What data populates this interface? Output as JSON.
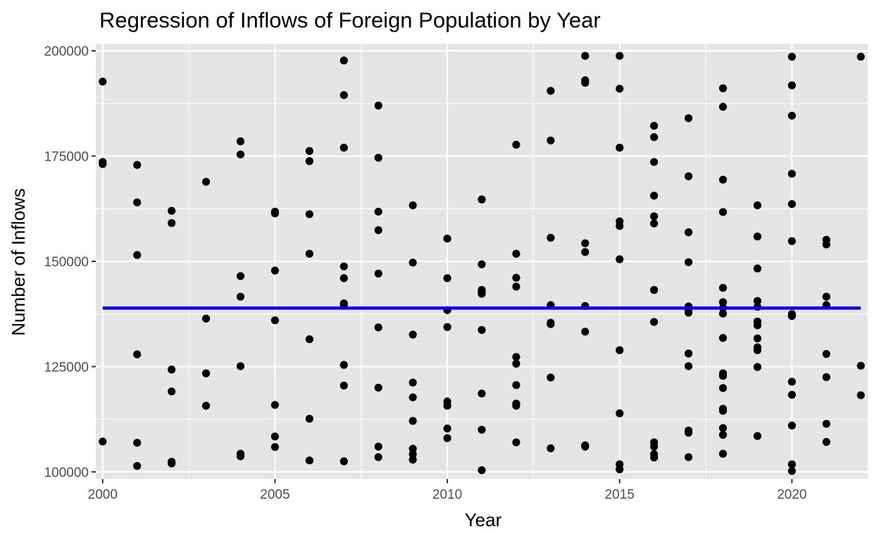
{
  "chart_data": {
    "type": "scatter",
    "title": "Regression of Inflows of Foreign Population by Year",
    "xlabel": "Year",
    "ylabel": "Number of Inflows",
    "xlim": [
      1999.8,
      2022.2
    ],
    "ylim": [
      98300,
      201700
    ],
    "x_ticks": [
      2000,
      2005,
      2010,
      2015,
      2020
    ],
    "y_ticks": [
      100000,
      125000,
      150000,
      175000,
      200000
    ],
    "grid": true,
    "colors": {
      "panel": "#e5e5e5",
      "grid": "#ffffff",
      "points": "#000000",
      "regression_line": "#0000ff"
    },
    "regression_line": {
      "x": [
        2000,
        2022
      ],
      "y": [
        138900,
        138900
      ]
    },
    "points": [
      [
        2000,
        192700
      ],
      [
        2000,
        173600
      ],
      [
        2000,
        173100
      ],
      [
        2000,
        107200
      ],
      [
        2001,
        172900
      ],
      [
        2001,
        164000
      ],
      [
        2001,
        151500
      ],
      [
        2001,
        127900
      ],
      [
        2001,
        106900
      ],
      [
        2001,
        101400
      ],
      [
        2002,
        162000
      ],
      [
        2002,
        159100
      ],
      [
        2002,
        124300
      ],
      [
        2002,
        119100
      ],
      [
        2002,
        102400
      ],
      [
        2002,
        102000
      ],
      [
        2003,
        168900
      ],
      [
        2003,
        136400
      ],
      [
        2003,
        123400
      ],
      [
        2003,
        115700
      ],
      [
        2004,
        178500
      ],
      [
        2004,
        175400
      ],
      [
        2004,
        146500
      ],
      [
        2004,
        141600
      ],
      [
        2004,
        125100
      ],
      [
        2004,
        104300
      ],
      [
        2004,
        103700
      ],
      [
        2005,
        161800
      ],
      [
        2005,
        161400
      ],
      [
        2005,
        147800
      ],
      [
        2005,
        136000
      ],
      [
        2005,
        115900
      ],
      [
        2005,
        108400
      ],
      [
        2005,
        105900
      ],
      [
        2006,
        176200
      ],
      [
        2006,
        173800
      ],
      [
        2006,
        161200
      ],
      [
        2006,
        151800
      ],
      [
        2006,
        131500
      ],
      [
        2006,
        112600
      ],
      [
        2006,
        102700
      ],
      [
        2007,
        197700
      ],
      [
        2007,
        189500
      ],
      [
        2007,
        177000
      ],
      [
        2007,
        148800
      ],
      [
        2007,
        146000
      ],
      [
        2007,
        140000
      ],
      [
        2007,
        139700
      ],
      [
        2007,
        125400
      ],
      [
        2007,
        120500
      ],
      [
        2007,
        102500
      ],
      [
        2008,
        187000
      ],
      [
        2008,
        174600
      ],
      [
        2008,
        161800
      ],
      [
        2008,
        157400
      ],
      [
        2008,
        147100
      ],
      [
        2008,
        134300
      ],
      [
        2008,
        120000
      ],
      [
        2008,
        106000
      ],
      [
        2008,
        103500
      ],
      [
        2009,
        163300
      ],
      [
        2009,
        149700
      ],
      [
        2009,
        132600
      ],
      [
        2009,
        121200
      ],
      [
        2009,
        117700
      ],
      [
        2009,
        112100
      ],
      [
        2009,
        105500
      ],
      [
        2009,
        104200
      ],
      [
        2009,
        102900
      ],
      [
        2010,
        155400
      ],
      [
        2010,
        146000
      ],
      [
        2010,
        138400
      ],
      [
        2010,
        134400
      ],
      [
        2010,
        116700
      ],
      [
        2010,
        115700
      ],
      [
        2010,
        110300
      ],
      [
        2010,
        108000
      ],
      [
        2011,
        164700
      ],
      [
        2011,
        149300
      ],
      [
        2011,
        143200
      ],
      [
        2011,
        142700
      ],
      [
        2011,
        142300
      ],
      [
        2011,
        133700
      ],
      [
        2011,
        118600
      ],
      [
        2011,
        110000
      ],
      [
        2011,
        100400
      ],
      [
        2012,
        177700
      ],
      [
        2012,
        151800
      ],
      [
        2012,
        146100
      ],
      [
        2012,
        144000
      ],
      [
        2012,
        127300
      ],
      [
        2012,
        125700
      ],
      [
        2012,
        120600
      ],
      [
        2012,
        116200
      ],
      [
        2012,
        115700
      ],
      [
        2012,
        107000
      ],
      [
        2013,
        190500
      ],
      [
        2013,
        178700
      ],
      [
        2013,
        155600
      ],
      [
        2013,
        139600
      ],
      [
        2013,
        135400
      ],
      [
        2013,
        135100
      ],
      [
        2013,
        122400
      ],
      [
        2013,
        105600
      ],
      [
        2014,
        198800
      ],
      [
        2014,
        193000
      ],
      [
        2014,
        192400
      ],
      [
        2014,
        154300
      ],
      [
        2014,
        152200
      ],
      [
        2014,
        139400
      ],
      [
        2014,
        133300
      ],
      [
        2014,
        106300
      ],
      [
        2014,
        106000
      ],
      [
        2015,
        198800
      ],
      [
        2015,
        191000
      ],
      [
        2015,
        177000
      ],
      [
        2015,
        159500
      ],
      [
        2015,
        158400
      ],
      [
        2015,
        150500
      ],
      [
        2015,
        128900
      ],
      [
        2015,
        113900
      ],
      [
        2015,
        101800
      ],
      [
        2015,
        100600
      ],
      [
        2016,
        182200
      ],
      [
        2016,
        179500
      ],
      [
        2016,
        173600
      ],
      [
        2016,
        165600
      ],
      [
        2016,
        160700
      ],
      [
        2016,
        159000
      ],
      [
        2016,
        143200
      ],
      [
        2016,
        135600
      ],
      [
        2016,
        107000
      ],
      [
        2016,
        106000
      ],
      [
        2016,
        104200
      ],
      [
        2016,
        103400
      ],
      [
        2017,
        184000
      ],
      [
        2017,
        170200
      ],
      [
        2017,
        156900
      ],
      [
        2017,
        149800
      ],
      [
        2017,
        139300
      ],
      [
        2017,
        138800
      ],
      [
        2017,
        138000
      ],
      [
        2017,
        137800
      ],
      [
        2017,
        128100
      ],
      [
        2017,
        125100
      ],
      [
        2017,
        109800
      ],
      [
        2017,
        109300
      ],
      [
        2017,
        103500
      ],
      [
        2018,
        191100
      ],
      [
        2018,
        186700
      ],
      [
        2018,
        169400
      ],
      [
        2018,
        161700
      ],
      [
        2018,
        143700
      ],
      [
        2018,
        140300
      ],
      [
        2018,
        139000
      ],
      [
        2018,
        137600
      ],
      [
        2018,
        131800
      ],
      [
        2018,
        123400
      ],
      [
        2018,
        122800
      ],
      [
        2018,
        119900
      ],
      [
        2018,
        115000
      ],
      [
        2018,
        114500
      ],
      [
        2018,
        110400
      ],
      [
        2018,
        108800
      ],
      [
        2018,
        104300
      ],
      [
        2019,
        163300
      ],
      [
        2019,
        155900
      ],
      [
        2019,
        148300
      ],
      [
        2019,
        140600
      ],
      [
        2019,
        139200
      ],
      [
        2019,
        135700
      ],
      [
        2019,
        134800
      ],
      [
        2019,
        131700
      ],
      [
        2019,
        129600
      ],
      [
        2019,
        128900
      ],
      [
        2019,
        124900
      ],
      [
        2019,
        108500
      ],
      [
        2020,
        198600
      ],
      [
        2020,
        191800
      ],
      [
        2020,
        184600
      ],
      [
        2020,
        170800
      ],
      [
        2020,
        163600
      ],
      [
        2020,
        154800
      ],
      [
        2020,
        137500
      ],
      [
        2020,
        137000
      ],
      [
        2020,
        121400
      ],
      [
        2020,
        118300
      ],
      [
        2020,
        111000
      ],
      [
        2020,
        101800
      ],
      [
        2020,
        100200
      ],
      [
        2021,
        155100
      ],
      [
        2021,
        154000
      ],
      [
        2021,
        141600
      ],
      [
        2021,
        139600
      ],
      [
        2021,
        128000
      ],
      [
        2021,
        122500
      ],
      [
        2021,
        111400
      ],
      [
        2021,
        107100
      ],
      [
        2022,
        198600
      ],
      [
        2022,
        125200
      ],
      [
        2022,
        118200
      ]
    ]
  }
}
